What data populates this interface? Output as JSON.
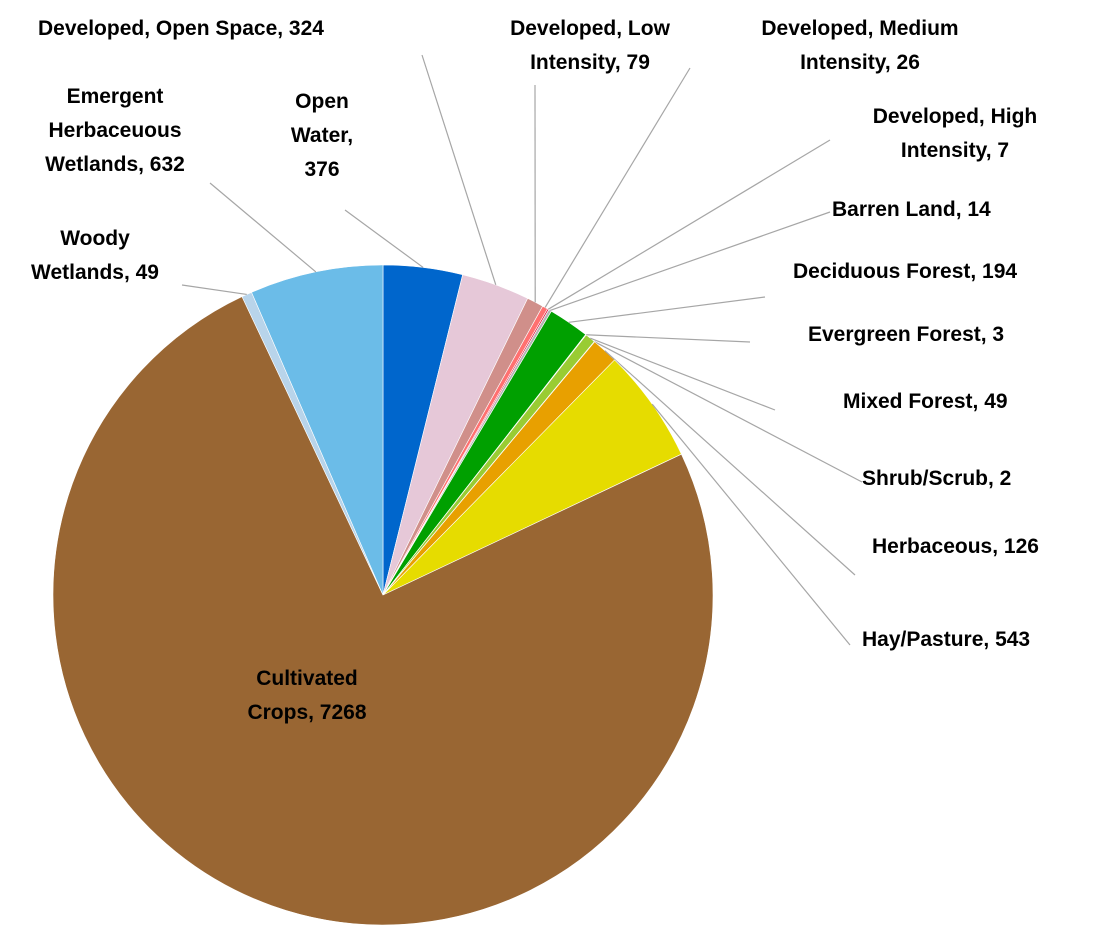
{
  "chart_data": {
    "type": "pie",
    "values": [
      376,
      324,
      79,
      26,
      7,
      14,
      194,
      3,
      49,
      2,
      126,
      543,
      7268,
      49,
      632
    ],
    "value_labels": [
      "Open Water, 376",
      "Developed, Open Space, 324",
      "Developed, Low Intensity, 79",
      "Developed, Medium Intensity, 26",
      "Developed, High Intensity, 7",
      "Barren Land, 14",
      "Deciduous Forest, 194",
      "Evergreen Forest, 3",
      "Mixed Forest, 49",
      "Shrub/Scrub, 2",
      "Herbaceous, 126",
      "Hay/Pasture, 543",
      "Cultivated Crops, 7268",
      "Woody Wetlands, 49",
      "Emergent Herbaceuous Wetlands, 632"
    ],
    "colors": [
      "#0066cc",
      "#e6c8d8",
      "#d08f8a",
      "#ff7070",
      "#e0002a",
      "#b3b3b3",
      "#00a000",
      "#006400",
      "#99cc33",
      "#c8a000",
      "#e8a000",
      "#e6dc00",
      "#996633",
      "#b8d4ea",
      "#6bbce8"
    ]
  }
}
